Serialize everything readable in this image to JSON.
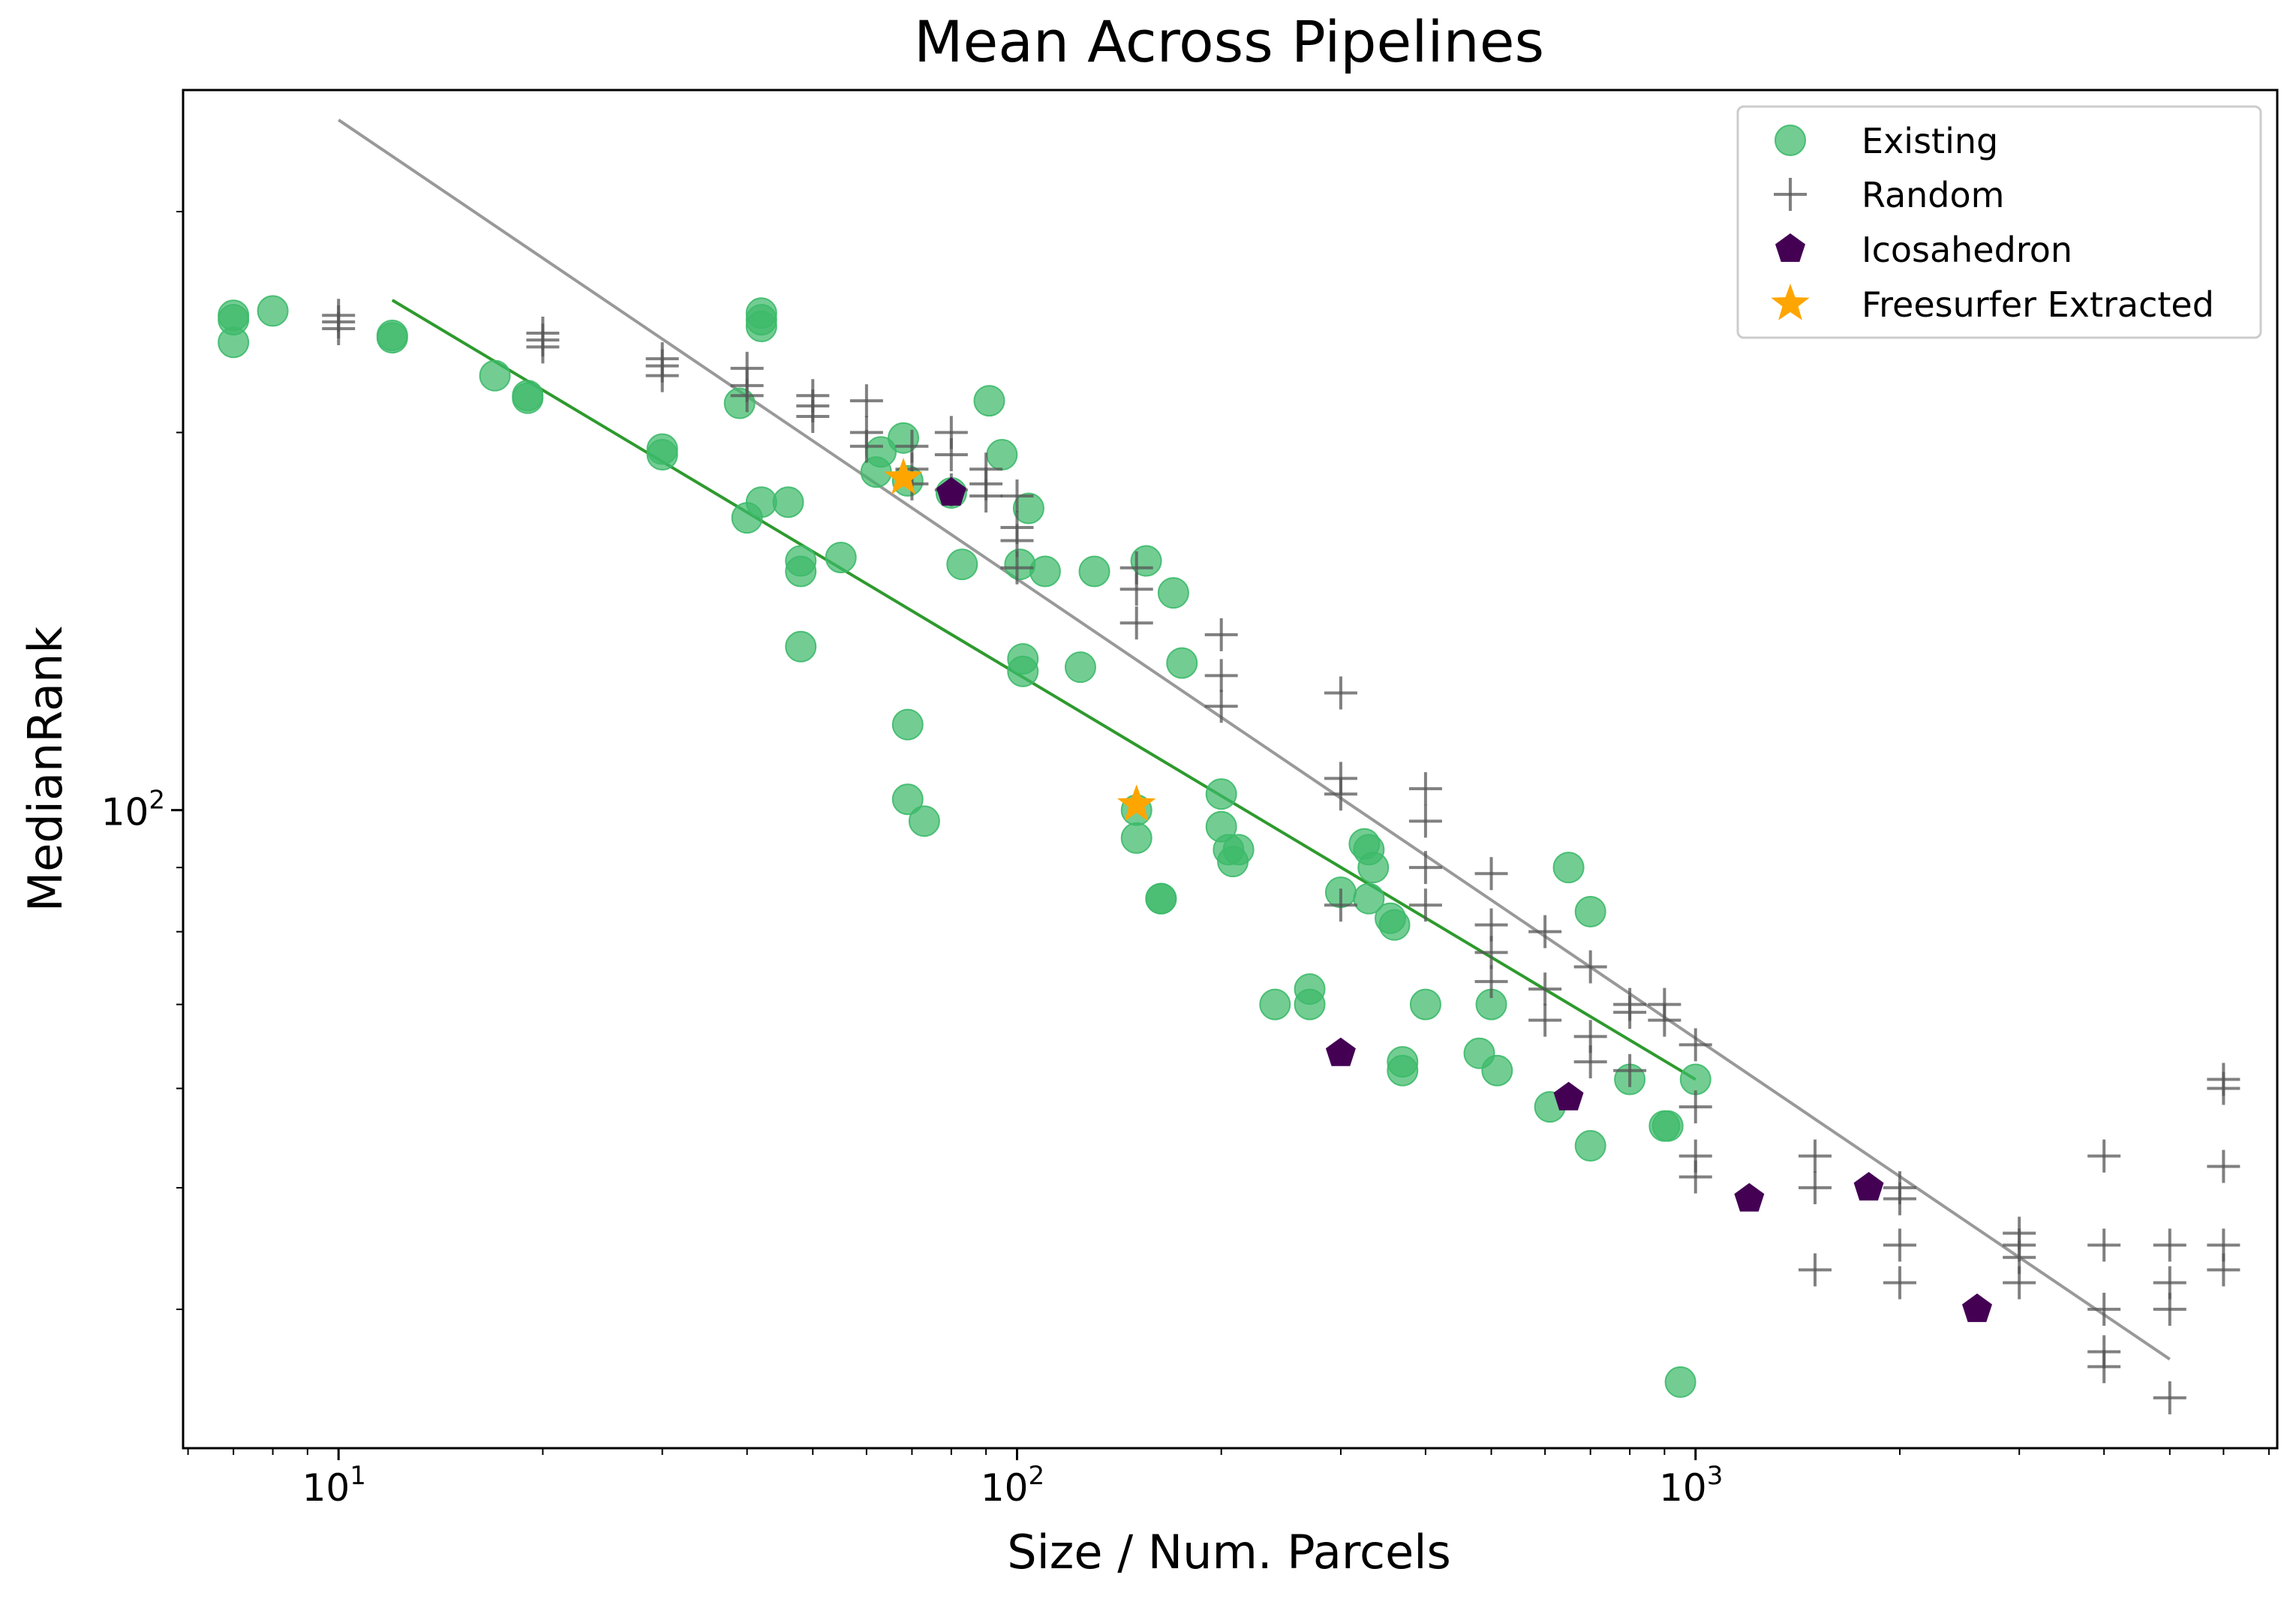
{
  "chart_data": {
    "type": "scatter",
    "title": "Mean Across Pipelines",
    "xlabel": "Size / Num. Parcels",
    "ylabel": "MedianRank",
    "xscale": "log",
    "yscale": "log",
    "xlim": [
      5.9,
      7200
    ],
    "ylim": [
      31,
      375
    ],
    "grid": false,
    "legend_position": "top-right",
    "x_ticks": [
      {
        "value": 10,
        "base": "10",
        "exp": "1"
      },
      {
        "value": 100,
        "base": "10",
        "exp": "2"
      },
      {
        "value": 1000,
        "base": "10",
        "exp": "3"
      }
    ],
    "y_ticks": [
      {
        "value": 100,
        "base": "10",
        "exp": "2"
      }
    ],
    "series": [
      {
        "name": "Existing",
        "marker": "circle",
        "color": "#3dba6a",
        "points": [
          [
            7,
            248
          ],
          [
            7,
            246
          ],
          [
            7,
            236
          ],
          [
            8,
            250
          ],
          [
            12,
            239
          ],
          [
            12,
            238
          ],
          [
            17,
            222
          ],
          [
            19,
            214
          ],
          [
            19,
            213
          ],
          [
            30,
            194
          ],
          [
            30,
            192
          ],
          [
            39,
            211
          ],
          [
            40,
            171
          ],
          [
            42,
            176
          ],
          [
            42,
            249
          ],
          [
            42,
            246
          ],
          [
            42,
            243
          ],
          [
            46,
            176
          ],
          [
            48,
            158
          ],
          [
            48,
            155
          ],
          [
            48,
            135
          ],
          [
            55,
            159
          ],
          [
            62,
            186
          ],
          [
            63,
            193
          ],
          [
            68,
            198
          ],
          [
            69,
            183
          ],
          [
            69,
            117
          ],
          [
            69,
            102
          ],
          [
            73,
            98
          ],
          [
            80,
            179
          ],
          [
            83,
            157
          ],
          [
            91,
            212
          ],
          [
            95,
            192
          ],
          [
            101,
            157
          ],
          [
            102,
            132
          ],
          [
            102,
            129
          ],
          [
            104,
            174
          ],
          [
            110,
            155
          ],
          [
            124,
            130
          ],
          [
            130,
            155
          ],
          [
            150,
            100
          ],
          [
            150,
            95
          ],
          [
            155,
            158
          ],
          [
            163,
            85
          ],
          [
            163,
            85
          ],
          [
            170,
            149
          ],
          [
            175,
            131
          ],
          [
            200,
            103
          ],
          [
            200,
            97
          ],
          [
            205,
            93
          ],
          [
            208,
            91
          ],
          [
            212,
            93
          ],
          [
            240,
            70
          ],
          [
            270,
            70
          ],
          [
            270,
            72
          ],
          [
            300,
            86
          ],
          [
            325,
            94
          ],
          [
            330,
            93
          ],
          [
            330,
            85
          ],
          [
            335,
            90
          ],
          [
            355,
            82
          ],
          [
            360,
            81
          ],
          [
            370,
            63
          ],
          [
            370,
            62
          ],
          [
            400,
            70
          ],
          [
            480,
            64
          ],
          [
            500,
            70
          ],
          [
            510,
            62
          ],
          [
            610,
            58
          ],
          [
            650,
            90
          ],
          [
            700,
            83
          ],
          [
            700,
            54
          ],
          [
            800,
            61
          ],
          [
            900,
            56
          ],
          [
            910,
            56
          ],
          [
            950,
            35
          ],
          [
            1000,
            61
          ]
        ]
      },
      {
        "name": "Random",
        "marker": "plus",
        "color": "#555555",
        "points": [
          [
            10,
            248
          ],
          [
            10,
            245
          ],
          [
            10,
            242
          ],
          [
            20,
            240
          ],
          [
            20,
            237
          ],
          [
            20,
            234
          ],
          [
            30,
            229
          ],
          [
            30,
            226
          ],
          [
            30,
            222
          ],
          [
            40,
            225
          ],
          [
            40,
            218
          ],
          [
            40,
            214
          ],
          [
            50,
            214
          ],
          [
            50,
            210
          ],
          [
            50,
            206
          ],
          [
            60,
            212
          ],
          [
            60,
            200
          ],
          [
            60,
            195
          ],
          [
            70,
            195
          ],
          [
            70,
            187
          ],
          [
            70,
            182
          ],
          [
            80,
            200
          ],
          [
            80,
            192
          ],
          [
            80,
            180
          ],
          [
            90,
            187
          ],
          [
            90,
            182
          ],
          [
            90,
            178
          ],
          [
            100,
            178
          ],
          [
            100,
            168
          ],
          [
            100,
            164
          ],
          [
            100,
            156
          ],
          [
            150,
            156
          ],
          [
            150,
            150
          ],
          [
            150,
            141
          ],
          [
            200,
            138
          ],
          [
            200,
            128
          ],
          [
            200,
            121
          ],
          [
            300,
            124
          ],
          [
            300,
            106
          ],
          [
            300,
            103
          ],
          [
            300,
            84
          ],
          [
            400,
            104
          ],
          [
            400,
            98
          ],
          [
            400,
            90
          ],
          [
            400,
            84
          ],
          [
            500,
            89
          ],
          [
            500,
            81
          ],
          [
            500,
            77
          ],
          [
            500,
            73
          ],
          [
            600,
            80
          ],
          [
            600,
            72
          ],
          [
            600,
            68
          ],
          [
            700,
            75
          ],
          [
            700,
            66
          ],
          [
            700,
            63
          ],
          [
            800,
            70
          ],
          [
            800,
            69
          ],
          [
            800,
            62
          ],
          [
            900,
            70
          ],
          [
            900,
            68
          ],
          [
            1000,
            65
          ],
          [
            1000,
            58
          ],
          [
            1000,
            53
          ],
          [
            1000,
            51
          ],
          [
            1500,
            53
          ],
          [
            1500,
            50
          ],
          [
            1500,
            43
          ],
          [
            2000,
            50
          ],
          [
            2000,
            49
          ],
          [
            2000,
            45
          ],
          [
            2000,
            42
          ],
          [
            3000,
            46
          ],
          [
            3000,
            45
          ],
          [
            3000,
            44
          ],
          [
            3000,
            42
          ],
          [
            4000,
            53
          ],
          [
            4000,
            45
          ],
          [
            4000,
            40
          ],
          [
            4000,
            37
          ],
          [
            4000,
            36
          ],
          [
            5000,
            45
          ],
          [
            5000,
            42
          ],
          [
            5000,
            40
          ],
          [
            5000,
            34
          ],
          [
            6000,
            61
          ],
          [
            6000,
            60
          ],
          [
            6000,
            52
          ],
          [
            6000,
            45
          ],
          [
            6000,
            43
          ]
        ]
      },
      {
        "name": "Icosahedron",
        "marker": "pentagon",
        "color": "#440154",
        "points": [
          [
            80,
            179
          ],
          [
            300,
            64
          ],
          [
            650,
            59
          ],
          [
            1200,
            49
          ],
          [
            1800,
            50
          ],
          [
            2600,
            40
          ]
        ]
      },
      {
        "name": "Freesurfer Extracted",
        "marker": "star",
        "color": "#ffa500",
        "points": [
          [
            68,
            184
          ],
          [
            150,
            101
          ]
        ]
      }
    ],
    "fit_lines": [
      {
        "color": "#999999",
        "from": [
          10,
          355
        ],
        "to": [
          5000,
          36.5
        ]
      },
      {
        "color": "#2e9a2e",
        "from": [
          12,
          255
        ],
        "to": [
          1000,
          61
        ]
      }
    ]
  }
}
